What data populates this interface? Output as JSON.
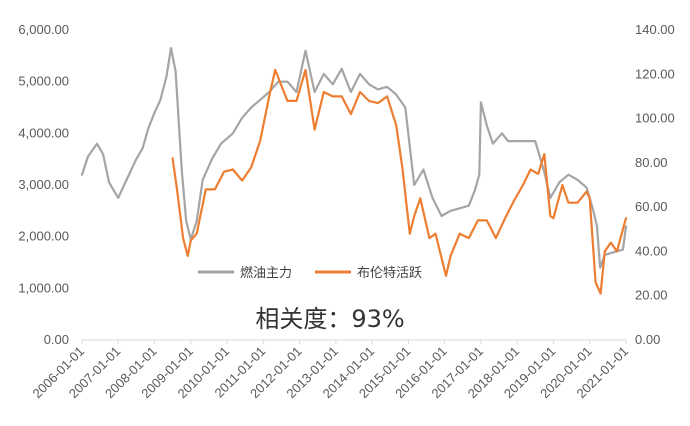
{
  "chart_data": {
    "type": "line",
    "annotation": "相关度：93%",
    "y_left": {
      "min": 0,
      "max": 6000,
      "ticks": [
        "0.00",
        "1,000.00",
        "2,000.00",
        "3,000.00",
        "4,000.00",
        "5,000.00",
        "6,000.00"
      ]
    },
    "y_right": {
      "min": 0,
      "max": 140,
      "ticks": [
        "0.00",
        "20.00",
        "40.00",
        "60.00",
        "80.00",
        "100.00",
        "120.00",
        "140.00"
      ]
    },
    "x_ticks": [
      "2006-01-01",
      "2007-01-01",
      "2008-01-01",
      "2009-01-01",
      "2010-01-01",
      "2011-01-01",
      "2012-01-01",
      "2013-01-01",
      "2014-01-01",
      "2015-01-01",
      "2016-01-01",
      "2017-01-01",
      "2018-01-01",
      "2019-01-01",
      "2020-01-01",
      "2021-01-01"
    ],
    "legend_position": "center",
    "grid": false,
    "series": [
      {
        "name": "燃油主力",
        "axis": "left",
        "color": "#A5A5A5",
        "x": [
          "2006-01-01",
          "2006-03-01",
          "2006-06-01",
          "2006-08-01",
          "2006-10-01",
          "2007-01-01",
          "2007-03-01",
          "2007-05-01",
          "2007-07-01",
          "2007-09-01",
          "2007-11-01",
          "2008-01-01",
          "2008-03-01",
          "2008-05-01",
          "2008-06-15",
          "2008-08-01",
          "2008-10-01",
          "2008-11-15",
          "2009-01-01",
          "2009-03-01",
          "2009-05-01",
          "2009-08-01",
          "2009-11-01",
          "2010-03-01",
          "2010-06-01",
          "2010-09-01",
          "2010-12-01",
          "2011-03-01",
          "2011-06-01",
          "2011-09-01",
          "2011-12-01",
          "2012-03-01",
          "2012-06-01",
          "2012-09-01",
          "2012-12-01",
          "2013-03-01",
          "2013-06-01",
          "2013-09-01",
          "2013-12-01",
          "2014-03-01",
          "2014-06-01",
          "2014-09-01",
          "2014-12-01",
          "2015-03-01",
          "2015-06-01",
          "2015-09-01",
          "2015-12-01",
          "2016-03-01",
          "2016-06-01",
          "2016-09-01",
          "2016-11-01",
          "2016-12-15",
          "2017-01-01",
          "2017-03-01",
          "2017-05-01",
          "2017-08-01",
          "2017-10-01",
          "2018-01-01",
          "2018-04-01",
          "2018-07-01",
          "2018-10-01",
          "2018-12-01",
          "2019-03-01",
          "2019-06-01",
          "2019-09-01",
          "2019-12-01",
          "2020-02-01",
          "2020-03-15",
          "2020-04-15",
          "2020-06-01",
          "2020-09-01",
          "2020-12-01",
          "2021-01-01"
        ],
        "values": [
          3200,
          3550,
          3800,
          3600,
          3050,
          2750,
          3000,
          3250,
          3500,
          3700,
          4100,
          4400,
          4650,
          5100,
          5650,
          5200,
          3300,
          2300,
          1950,
          2300,
          3100,
          3500,
          3800,
          4000,
          4300,
          4500,
          4650,
          4800,
          5000,
          5000,
          4800,
          5600,
          4800,
          5150,
          4950,
          5250,
          4800,
          5150,
          4950,
          4850,
          4900,
          4750,
          4500,
          3000,
          3300,
          2750,
          2400,
          2500,
          2550,
          2600,
          2900,
          3200,
          4600,
          4150,
          3800,
          4000,
          3850,
          3850,
          3850,
          3850,
          3250,
          2750,
          3050,
          3200,
          3100,
          2950,
          2550,
          2200,
          1400,
          1650,
          1700,
          1750,
          2200
        ]
      },
      {
        "name": "布伦特活跃",
        "axis": "right",
        "color": "#ED7D31",
        "x": [
          "2008-07-01",
          "2008-08-15",
          "2008-10-15",
          "2008-12-01",
          "2009-01-01",
          "2009-03-01",
          "2009-06-01",
          "2009-09-01",
          "2009-12-01",
          "2010-03-01",
          "2010-06-01",
          "2010-09-01",
          "2010-12-01",
          "2011-03-01",
          "2011-05-01",
          "2011-07-01",
          "2011-09-01",
          "2011-12-01",
          "2012-03-01",
          "2012-06-01",
          "2012-09-01",
          "2012-12-01",
          "2013-03-01",
          "2013-06-01",
          "2013-09-01",
          "2013-12-01",
          "2014-03-01",
          "2014-06-01",
          "2014-09-01",
          "2014-11-01",
          "2015-01-15",
          "2015-03-01",
          "2015-05-01",
          "2015-08-01",
          "2015-10-01",
          "2016-01-15",
          "2016-03-01",
          "2016-06-01",
          "2016-09-01",
          "2016-12-01",
          "2017-03-01",
          "2017-06-01",
          "2017-09-01",
          "2017-12-01",
          "2018-03-01",
          "2018-05-15",
          "2018-08-01",
          "2018-10-01",
          "2018-12-01",
          "2019-01-01",
          "2019-04-01",
          "2019-06-01",
          "2019-09-01",
          "2019-12-01",
          "2020-01-01",
          "2020-03-01",
          "2020-04-20",
          "2020-06-01",
          "2020-08-01",
          "2020-10-01",
          "2020-12-01",
          "2021-01-01"
        ],
        "values": [
          82,
          68,
          46,
          38,
          45,
          48,
          68,
          68,
          76,
          77,
          72,
          78,
          90,
          110,
          122,
          115,
          108,
          108,
          122,
          95,
          112,
          110,
          110,
          102,
          112,
          108,
          107,
          110,
          97,
          78,
          48,
          56,
          64,
          46,
          48,
          29,
          38,
          48,
          46,
          54,
          54,
          46,
          55,
          63,
          70,
          77,
          75,
          84,
          56,
          55,
          70,
          62,
          62,
          67,
          64,
          26,
          21,
          40,
          44,
          40,
          50,
          55
        ]
      }
    ]
  }
}
